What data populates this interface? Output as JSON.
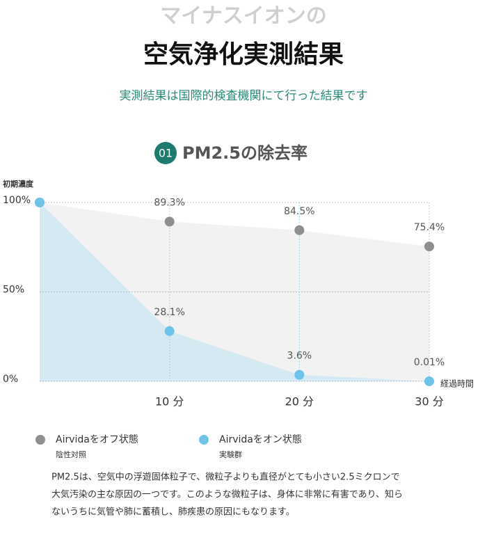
{
  "header": {
    "kicker": "マイナスイオンの",
    "title": "空気浄化実測結果",
    "subtitle": "実測結果は国際的検査機関にて行った結果です",
    "section_number": "01",
    "section_title": "PM2.5の除去率"
  },
  "chart_data": {
    "type": "area",
    "y_label": "初期濃度",
    "x_label": "経過時間",
    "x": [
      0,
      10,
      20,
      30
    ],
    "xlim": [
      0,
      30
    ],
    "xticks": [
      {
        "value": 10,
        "label": "10 分"
      },
      {
        "value": 20,
        "label": "20 分"
      },
      {
        "value": 30,
        "label": "30 分"
      }
    ],
    "ylim": [
      0,
      100
    ],
    "yticks": [
      {
        "value": 0,
        "label": "0%"
      },
      {
        "value": 50,
        "label": "50%"
      },
      {
        "value": 100,
        "label": "100%"
      }
    ],
    "series": [
      {
        "name": "Airvidaをオフ状態",
        "legend_sublabel": "陰性対照",
        "color": "#8f8f8f",
        "area_color": "#f2f2f2",
        "values": [
          100,
          89.3,
          84.5,
          75.4
        ],
        "value_labels": [
          null,
          "89.3%",
          "84.5%",
          "75.4%"
        ]
      },
      {
        "name": "Airvidaをオン状態",
        "legend_sublabel": "実験群",
        "color": "#6ec3ea",
        "area_color": "#d5e9f3",
        "values": [
          100,
          28.1,
          3.6,
          0.01
        ],
        "value_labels": [
          null,
          "28.1%",
          "3.6%",
          "0.01%"
        ]
      }
    ]
  },
  "footer": {
    "lines": [
      "PM2.5は、空気中の浮遊固体粒子で、微粒子よりも直径がとても小さい2.5ミクロンで",
      "大気汚染の主な原因の一つです。このような微粒子は、身体に非常に有害であり、知ら",
      "ないうちに気管や肺に蓄積し、肺疾患の原因にもなります。"
    ]
  }
}
